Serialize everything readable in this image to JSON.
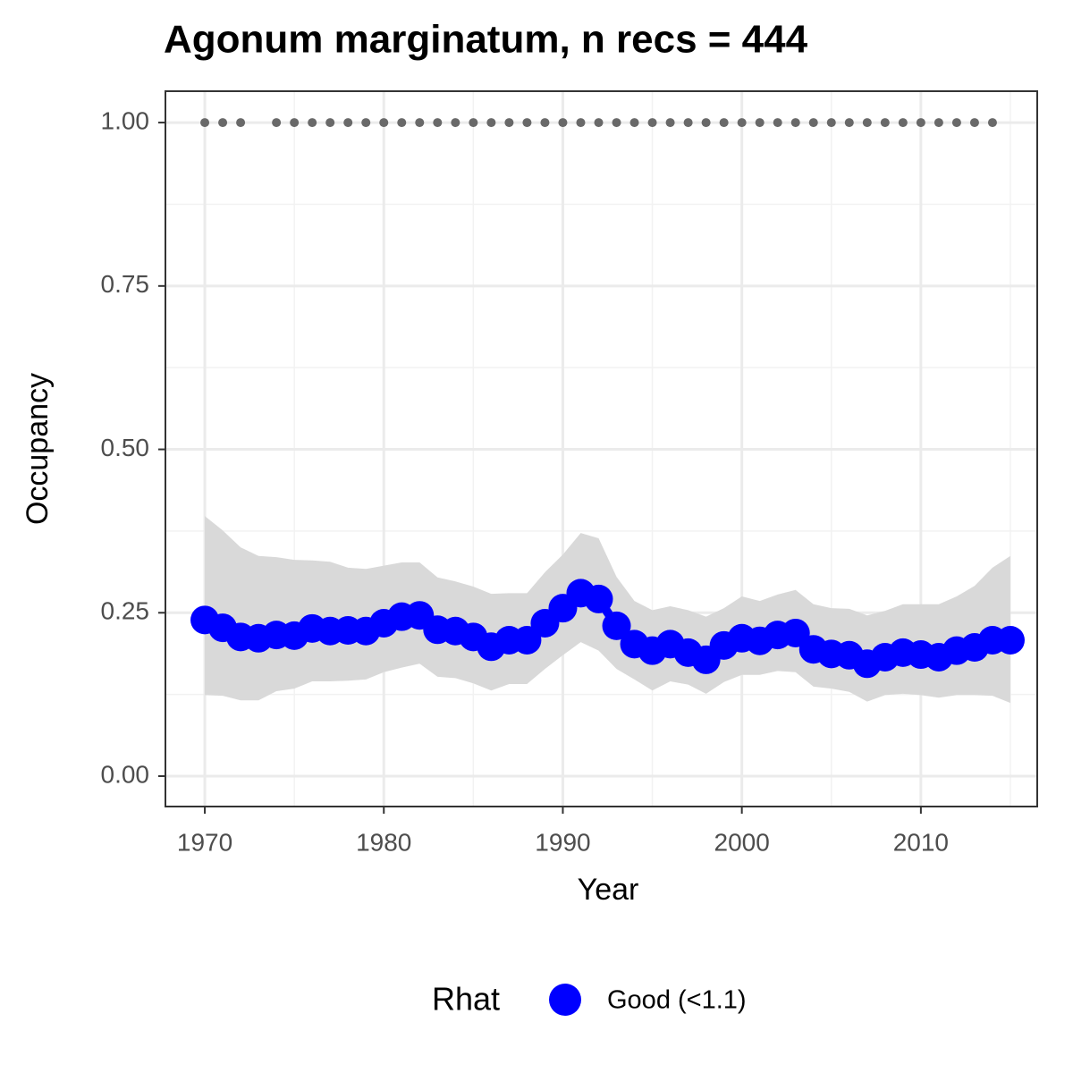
{
  "chart_data": {
    "type": "line",
    "title": "Agonum marginatum, n recs = 444",
    "xlabel": "Year",
    "ylabel": "Occupancy",
    "x": [
      1970,
      1971,
      1972,
      1973,
      1974,
      1975,
      1976,
      1977,
      1978,
      1979,
      1980,
      1981,
      1982,
      1983,
      1984,
      1985,
      1986,
      1987,
      1988,
      1989,
      1990,
      1991,
      1992,
      1993,
      1994,
      1995,
      1996,
      1997,
      1998,
      1999,
      2000,
      2001,
      2002,
      2003,
      2004,
      2005,
      2006,
      2007,
      2008,
      2009,
      2010,
      2011,
      2012,
      2013,
      2014,
      2015
    ],
    "series": [
      {
        "name": "Good (<1.1)",
        "color": "#0000ff",
        "values": [
          0.239,
          0.227,
          0.213,
          0.211,
          0.216,
          0.215,
          0.226,
          0.222,
          0.223,
          0.222,
          0.234,
          0.244,
          0.246,
          0.224,
          0.222,
          0.213,
          0.198,
          0.208,
          0.208,
          0.234,
          0.257,
          0.28,
          0.271,
          0.23,
          0.202,
          0.192,
          0.202,
          0.189,
          0.178,
          0.2,
          0.211,
          0.207,
          0.216,
          0.219,
          0.194,
          0.187,
          0.185,
          0.172,
          0.182,
          0.189,
          0.186,
          0.182,
          0.192,
          0.197,
          0.208,
          0.208
        ],
        "upper": [
          0.398,
          0.376,
          0.35,
          0.337,
          0.335,
          0.331,
          0.33,
          0.328,
          0.319,
          0.317,
          0.322,
          0.327,
          0.327,
          0.304,
          0.298,
          0.29,
          0.279,
          0.28,
          0.28,
          0.312,
          0.339,
          0.372,
          0.364,
          0.305,
          0.268,
          0.254,
          0.26,
          0.254,
          0.244,
          0.257,
          0.275,
          0.268,
          0.278,
          0.285,
          0.263,
          0.257,
          0.256,
          0.246,
          0.253,
          0.263,
          0.263,
          0.263,
          0.275,
          0.291,
          0.319,
          0.337
        ],
        "lower": [
          0.124,
          0.123,
          0.116,
          0.116,
          0.13,
          0.134,
          0.145,
          0.145,
          0.146,
          0.148,
          0.159,
          0.166,
          0.172,
          0.152,
          0.15,
          0.142,
          0.131,
          0.141,
          0.141,
          0.164,
          0.185,
          0.205,
          0.192,
          0.164,
          0.148,
          0.131,
          0.145,
          0.14,
          0.126,
          0.144,
          0.155,
          0.155,
          0.161,
          0.159,
          0.137,
          0.134,
          0.129,
          0.114,
          0.124,
          0.126,
          0.124,
          0.12,
          0.124,
          0.124,
          0.123,
          0.112
        ]
      }
    ],
    "band_color": "#d9d9d9",
    "records": {
      "color": "#696969",
      "x": [
        1970,
        1971,
        1972,
        1974,
        1975,
        1976,
        1977,
        1978,
        1979,
        1980,
        1981,
        1982,
        1983,
        1984,
        1985,
        1986,
        1987,
        1988,
        1989,
        1990,
        1991,
        1992,
        1993,
        1994,
        1995,
        1996,
        1997,
        1998,
        1999,
        2000,
        2001,
        2002,
        2003,
        2004,
        2005,
        2006,
        2007,
        2008,
        2009,
        2010,
        2011,
        2012,
        2013,
        2014
      ],
      "values": [
        1,
        1,
        1,
        1,
        1,
        1,
        1,
        1,
        1,
        1,
        1,
        1,
        1,
        1,
        1,
        1,
        1,
        1,
        1,
        1,
        1,
        1,
        1,
        1,
        1,
        1,
        1,
        1,
        1,
        1,
        1,
        1,
        1,
        1,
        1,
        1,
        1,
        1,
        1,
        1,
        1,
        1,
        1,
        1
      ]
    },
    "xlim": [
      1967.8,
      2016.5
    ],
    "ylim": [
      -0.0465,
      1.048
    ],
    "xticks": [
      1970,
      1980,
      1990,
      2000,
      2010
    ],
    "yticks": [
      {
        "value": 0,
        "label": "0.00"
      },
      {
        "value": 0.25,
        "label": "0.25"
      },
      {
        "value": 0.5,
        "label": "0.50"
      },
      {
        "value": 0.75,
        "label": "0.75"
      },
      {
        "value": 1,
        "label": "1.00"
      }
    ],
    "grid": true,
    "legend": {
      "title": "Rhat",
      "position": "bottom"
    }
  }
}
